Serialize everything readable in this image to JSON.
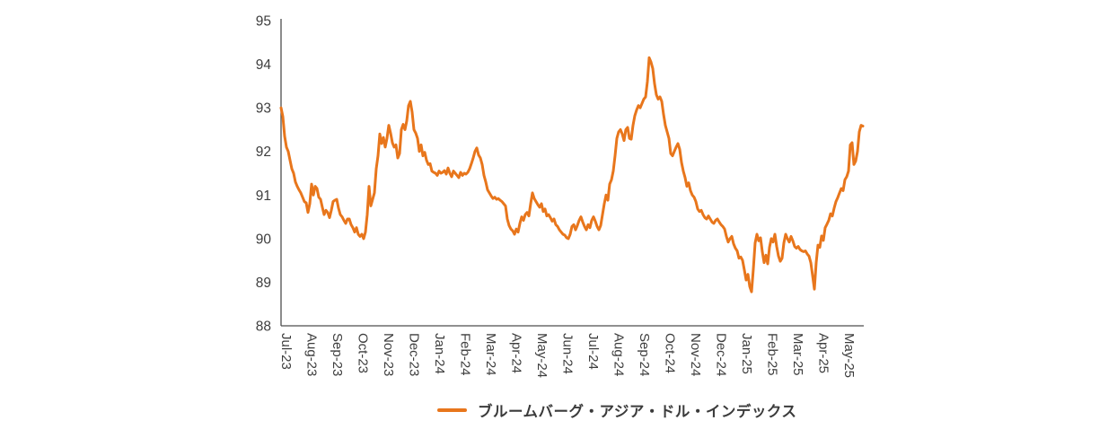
{
  "legend": {
    "label": "ブルームバーグ・アジア・ドル・インデックス"
  },
  "chart_data": {
    "type": "line",
    "title": "",
    "xlabel": "",
    "ylabel": "",
    "ylim": [
      88,
      95
    ],
    "y_ticks": [
      88,
      89,
      90,
      91,
      92,
      93,
      94,
      95
    ],
    "x_tick_labels": [
      "Jul-23",
      "Aug-23",
      "Sep-23",
      "Oct-23",
      "Nov-23",
      "Dec-23",
      "Jan-24",
      "Feb-24",
      "Mar-24",
      "Apr-24",
      "May-24",
      "Jun-24",
      "Jul-24",
      "Aug-24",
      "Sep-24",
      "Oct-24",
      "Nov-24",
      "Dec-24",
      "Jan-25",
      "Feb-25",
      "Mar-25",
      "Apr-25",
      "May-25"
    ],
    "grid": false,
    "legend_position": "bottom-center",
    "series": [
      {
        "name": "ブルームバーグ・アジア・ドル・インデックス",
        "color": "#E8761C",
        "x_start": "2023-07-03",
        "x_end": "2025-05-30",
        "x_note": "325 evenly spaced observations (~2 days apart), values read from chart",
        "values": [
          93.0,
          92.8,
          92.35,
          92.1,
          92.0,
          91.8,
          91.6,
          91.5,
          91.3,
          91.2,
          91.12,
          91.05,
          90.95,
          90.85,
          90.82,
          90.6,
          90.8,
          91.25,
          91.0,
          91.2,
          91.15,
          90.95,
          90.9,
          90.72,
          90.55,
          90.65,
          90.6,
          90.48,
          90.65,
          90.85,
          90.88,
          90.9,
          90.7,
          90.55,
          90.5,
          90.42,
          90.35,
          90.45,
          90.45,
          90.32,
          90.25,
          90.15,
          90.25,
          90.1,
          90.05,
          90.1,
          90.0,
          90.15,
          90.55,
          91.2,
          90.75,
          90.9,
          91.05,
          91.6,
          91.9,
          92.4,
          92.18,
          92.32,
          92.1,
          92.3,
          92.6,
          92.42,
          92.2,
          92.1,
          92.15,
          91.85,
          91.95,
          92.5,
          92.62,
          92.5,
          92.7,
          93.05,
          93.15,
          92.9,
          92.5,
          92.42,
          92.3,
          92.0,
          92.15,
          91.9,
          91.98,
          91.8,
          91.7,
          91.72,
          91.55,
          91.52,
          91.5,
          91.45,
          91.55,
          91.5,
          91.52,
          91.56,
          91.48,
          91.62,
          91.5,
          91.42,
          91.55,
          91.5,
          91.45,
          91.4,
          91.52,
          91.45,
          91.5,
          91.48,
          91.52,
          91.6,
          91.72,
          91.85,
          92.0,
          92.08,
          91.92,
          91.85,
          91.7,
          91.45,
          91.3,
          91.12,
          91.05,
          90.98,
          90.92,
          90.95,
          90.9,
          90.92,
          90.88,
          90.85,
          90.8,
          90.75,
          90.45,
          90.3,
          90.22,
          90.18,
          90.1,
          90.22,
          90.15,
          90.35,
          90.5,
          90.42,
          90.55,
          90.6,
          90.52,
          90.8,
          91.05,
          90.92,
          90.85,
          90.78,
          90.72,
          90.8,
          90.62,
          90.68,
          90.52,
          90.55,
          90.48,
          90.4,
          90.45,
          90.32,
          90.28,
          90.2,
          90.15,
          90.1,
          90.08,
          90.02,
          90.0,
          90.1,
          90.28,
          90.32,
          90.2,
          90.3,
          90.42,
          90.5,
          90.38,
          90.28,
          90.2,
          90.32,
          90.25,
          90.42,
          90.5,
          90.4,
          90.28,
          90.2,
          90.3,
          90.55,
          90.8,
          91.0,
          90.88,
          91.25,
          91.35,
          91.55,
          91.9,
          92.3,
          92.45,
          92.5,
          92.4,
          92.25,
          92.5,
          92.55,
          92.3,
          92.28,
          92.6,
          92.82,
          92.95,
          93.05,
          93.0,
          93.1,
          93.2,
          93.25,
          93.6,
          94.15,
          94.05,
          93.9,
          93.55,
          93.3,
          93.2,
          93.25,
          93.15,
          92.85,
          92.6,
          92.45,
          92.3,
          91.95,
          91.9,
          92.0,
          92.1,
          92.18,
          92.05,
          91.75,
          91.55,
          91.4,
          91.2,
          91.28,
          91.1,
          91.0,
          90.95,
          90.85,
          90.68,
          90.62,
          90.65,
          90.55,
          90.48,
          90.45,
          90.52,
          90.45,
          90.38,
          90.35,
          90.42,
          90.45,
          90.38,
          90.32,
          90.28,
          90.22,
          90.05,
          89.92,
          90.0,
          90.05,
          89.88,
          89.78,
          89.72,
          89.55,
          89.58,
          89.5,
          89.28,
          89.05,
          89.18,
          88.9,
          88.78,
          89.3,
          89.9,
          90.1,
          89.95,
          90.02,
          89.7,
          89.45,
          89.62,
          89.42,
          89.8,
          90.0,
          89.92,
          90.1,
          89.82,
          89.6,
          89.48,
          89.55,
          89.9,
          90.1,
          90.0,
          89.92,
          90.05,
          89.95,
          89.82,
          89.78,
          89.82,
          89.75,
          89.72,
          89.7,
          89.72,
          89.65,
          89.6,
          89.45,
          89.15,
          88.84,
          89.45,
          89.85,
          89.8,
          90.06,
          89.96,
          90.25,
          90.33,
          90.42,
          90.57,
          90.52,
          90.7,
          90.85,
          90.94,
          91.05,
          91.15,
          91.1,
          91.35,
          91.42,
          91.55,
          92.15,
          92.2,
          91.7,
          91.78,
          92.0,
          92.45,
          92.6,
          92.58
        ]
      }
    ]
  }
}
